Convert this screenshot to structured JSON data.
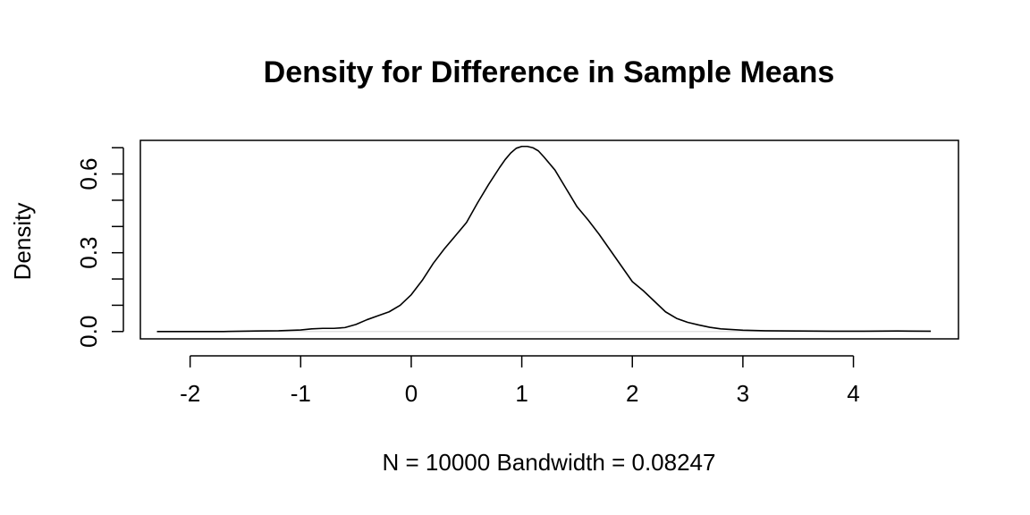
{
  "chart_data": {
    "type": "line",
    "title": "Density for Difference in Sample Means",
    "xlabel": "N = 10000   Bandwidth = 0.08247",
    "ylabel": "Density",
    "xlim": [
      -2.45,
      4.95
    ],
    "ylim": [
      -0.028,
      0.728
    ],
    "x_ticks": [
      -2,
      -1,
      0,
      1,
      2,
      3,
      4
    ],
    "x_tick_labels": [
      "-2",
      "-1",
      "0",
      "1",
      "2",
      "3",
      "4"
    ],
    "y_ticks": [
      0.0,
      0.1,
      0.2,
      0.3,
      0.4,
      0.5,
      0.6,
      0.7
    ],
    "y_labeled_ticks": [
      0.0,
      0.3,
      0.6
    ],
    "y_tick_labels": [
      "0.0",
      "0.3",
      "0.6"
    ],
    "grid": false,
    "zero_line": true,
    "series": [
      {
        "x": [
          -2.3,
          -2.0,
          -1.7,
          -1.4,
          -1.2,
          -1.0,
          -0.9,
          -0.8,
          -0.7,
          -0.6,
          -0.5,
          -0.4,
          -0.3,
          -0.2,
          -0.1,
          0.0,
          0.1,
          0.2,
          0.3,
          0.4,
          0.5,
          0.6,
          0.7,
          0.8,
          0.85,
          0.9,
          0.95,
          1.0,
          1.05,
          1.1,
          1.15,
          1.2,
          1.3,
          1.4,
          1.5,
          1.6,
          1.7,
          1.8,
          1.9,
          2.0,
          2.1,
          2.2,
          2.3,
          2.4,
          2.5,
          2.6,
          2.7,
          2.8,
          3.0,
          3.2,
          3.5,
          3.8,
          4.1,
          4.4,
          4.7
        ],
        "y": [
          0.0,
          0.0,
          0.0,
          0.002,
          0.003,
          0.006,
          0.01,
          0.012,
          0.012,
          0.015,
          0.027,
          0.045,
          0.06,
          0.075,
          0.1,
          0.14,
          0.195,
          0.26,
          0.315,
          0.365,
          0.415,
          0.49,
          0.56,
          0.625,
          0.655,
          0.68,
          0.698,
          0.705,
          0.705,
          0.7,
          0.688,
          0.665,
          0.615,
          0.545,
          0.475,
          0.425,
          0.37,
          0.31,
          0.25,
          0.19,
          0.155,
          0.115,
          0.075,
          0.05,
          0.035,
          0.025,
          0.016,
          0.01,
          0.005,
          0.003,
          0.002,
          0.001,
          0.001,
          0.002,
          0.001
        ]
      }
    ]
  }
}
